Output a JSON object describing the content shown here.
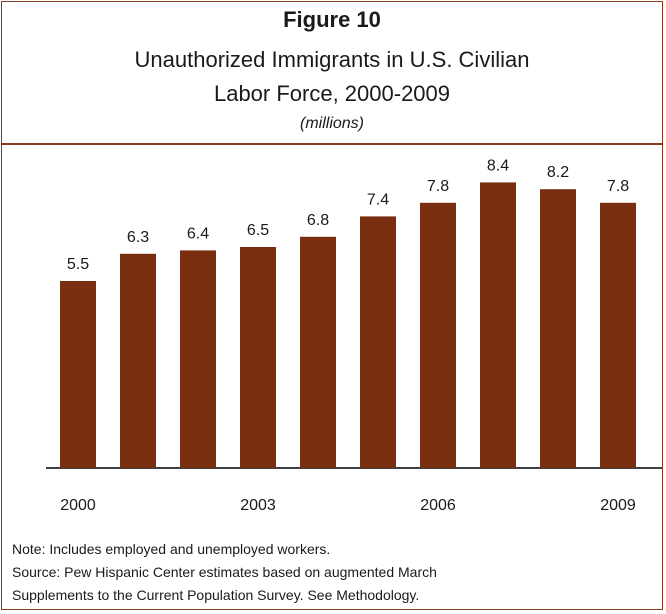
{
  "figure_label": "Figure 10",
  "title_line1": "Unauthorized Immigrants in U.S. Civilian",
  "title_line2": "Labor Force, 2000-2009",
  "units": "(millions)",
  "notes": {
    "note": "Note: Includes employed and unemployed workers.",
    "source_line1": "Source:  Pew Hispanic Center estimates based on augmented March",
    "source_line2": "Supplements to the Current Population Survey. See Methodology."
  },
  "colors": {
    "bar": "#7a2e10",
    "border": "#8a3a1e",
    "axis": "#000000"
  },
  "chart_data": {
    "type": "bar",
    "categories": [
      "2000",
      "2001",
      "2002",
      "2003",
      "2004",
      "2005",
      "2006",
      "2007",
      "2008",
      "2009"
    ],
    "tick_labels": [
      "2000",
      "",
      "",
      "2003",
      "",
      "",
      "2006",
      "",
      "",
      "2009"
    ],
    "values": [
      5.5,
      6.3,
      6.4,
      6.5,
      6.8,
      7.4,
      7.8,
      8.4,
      8.2,
      7.8
    ],
    "data_labels": [
      "5.5",
      "6.3",
      "6.4",
      "6.5",
      "6.8",
      "7.4",
      "7.8",
      "8.4",
      "8.2",
      "7.8"
    ],
    "title": "Unauthorized Immigrants in U.S. Civilian Labor Force, 2000-2009",
    "xlabel": "",
    "ylabel": "",
    "ylim": [
      0,
      8.4
    ],
    "grid": false,
    "legend": "none"
  }
}
